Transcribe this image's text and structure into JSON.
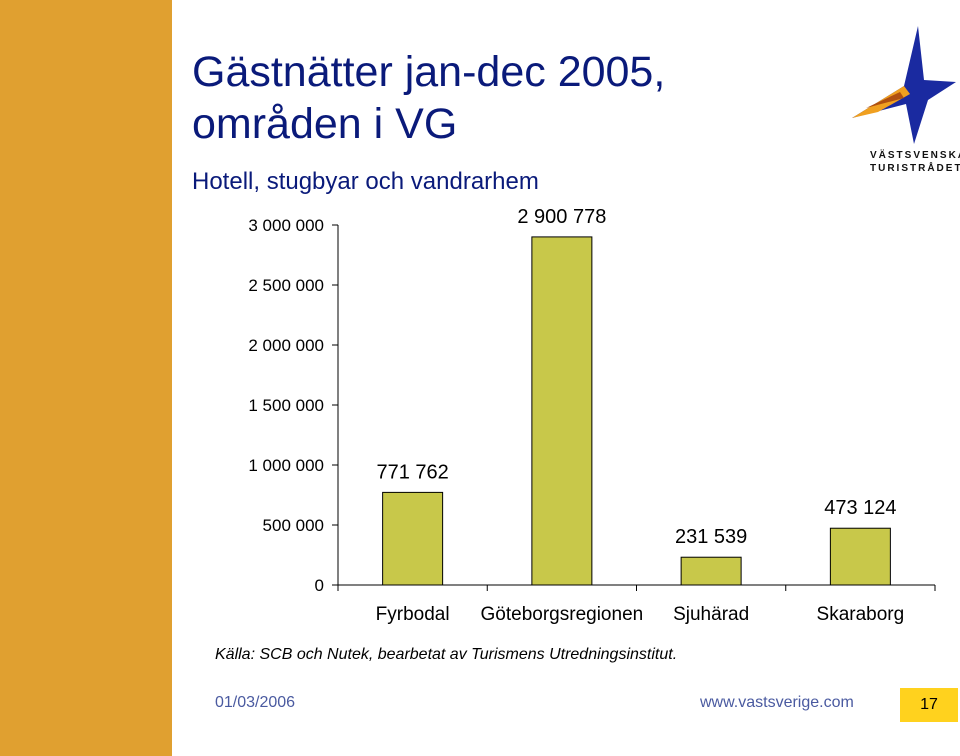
{
  "colors": {
    "side_bar": "#e0a030",
    "bar_fill": "#c8c84a",
    "bar_stroke": "#000000",
    "title": "#0a1a7a",
    "footer_text": "#4a5aa0",
    "page_box": "#ffd21e",
    "logo_blue": "#1a2aa0",
    "logo_orange": "#f0a020"
  },
  "slide": {
    "title_line1": "Gästnätter jan-dec 2005,",
    "title_line2": "områden i VG",
    "subtitle": "Hotell, stugbyar och vandrarhem",
    "source": "Källa: SCB och Nutek, bearbetat av Turismens Utredningsinstitut.",
    "date": "01/03/2006",
    "website": "www.vastsverige.com",
    "page_number": "17"
  },
  "logo": {
    "line1": "VÄSTSVENSKA",
    "line2": "TURISTRÅDET",
    "icon": "star-logo-icon"
  },
  "chart_data": {
    "type": "bar",
    "categories": [
      "Fyrbodal",
      "Göteborgsregionen",
      "Sjuhärad",
      "Skaraborg"
    ],
    "values": [
      771762,
      2900778,
      231539,
      473124
    ],
    "data_labels": [
      "771 762",
      "2 900 778",
      "231 539",
      "473 124"
    ],
    "ylim": [
      0,
      3000000
    ],
    "yticks": [
      0,
      500000,
      1000000,
      1500000,
      2000000,
      2500000,
      3000000
    ],
    "ytick_labels": [
      "0",
      "500 000",
      "1 000 000",
      "1 500 000",
      "2 000 000",
      "2 500 000",
      "3 000 000"
    ],
    "grid": false,
    "legend": false
  }
}
